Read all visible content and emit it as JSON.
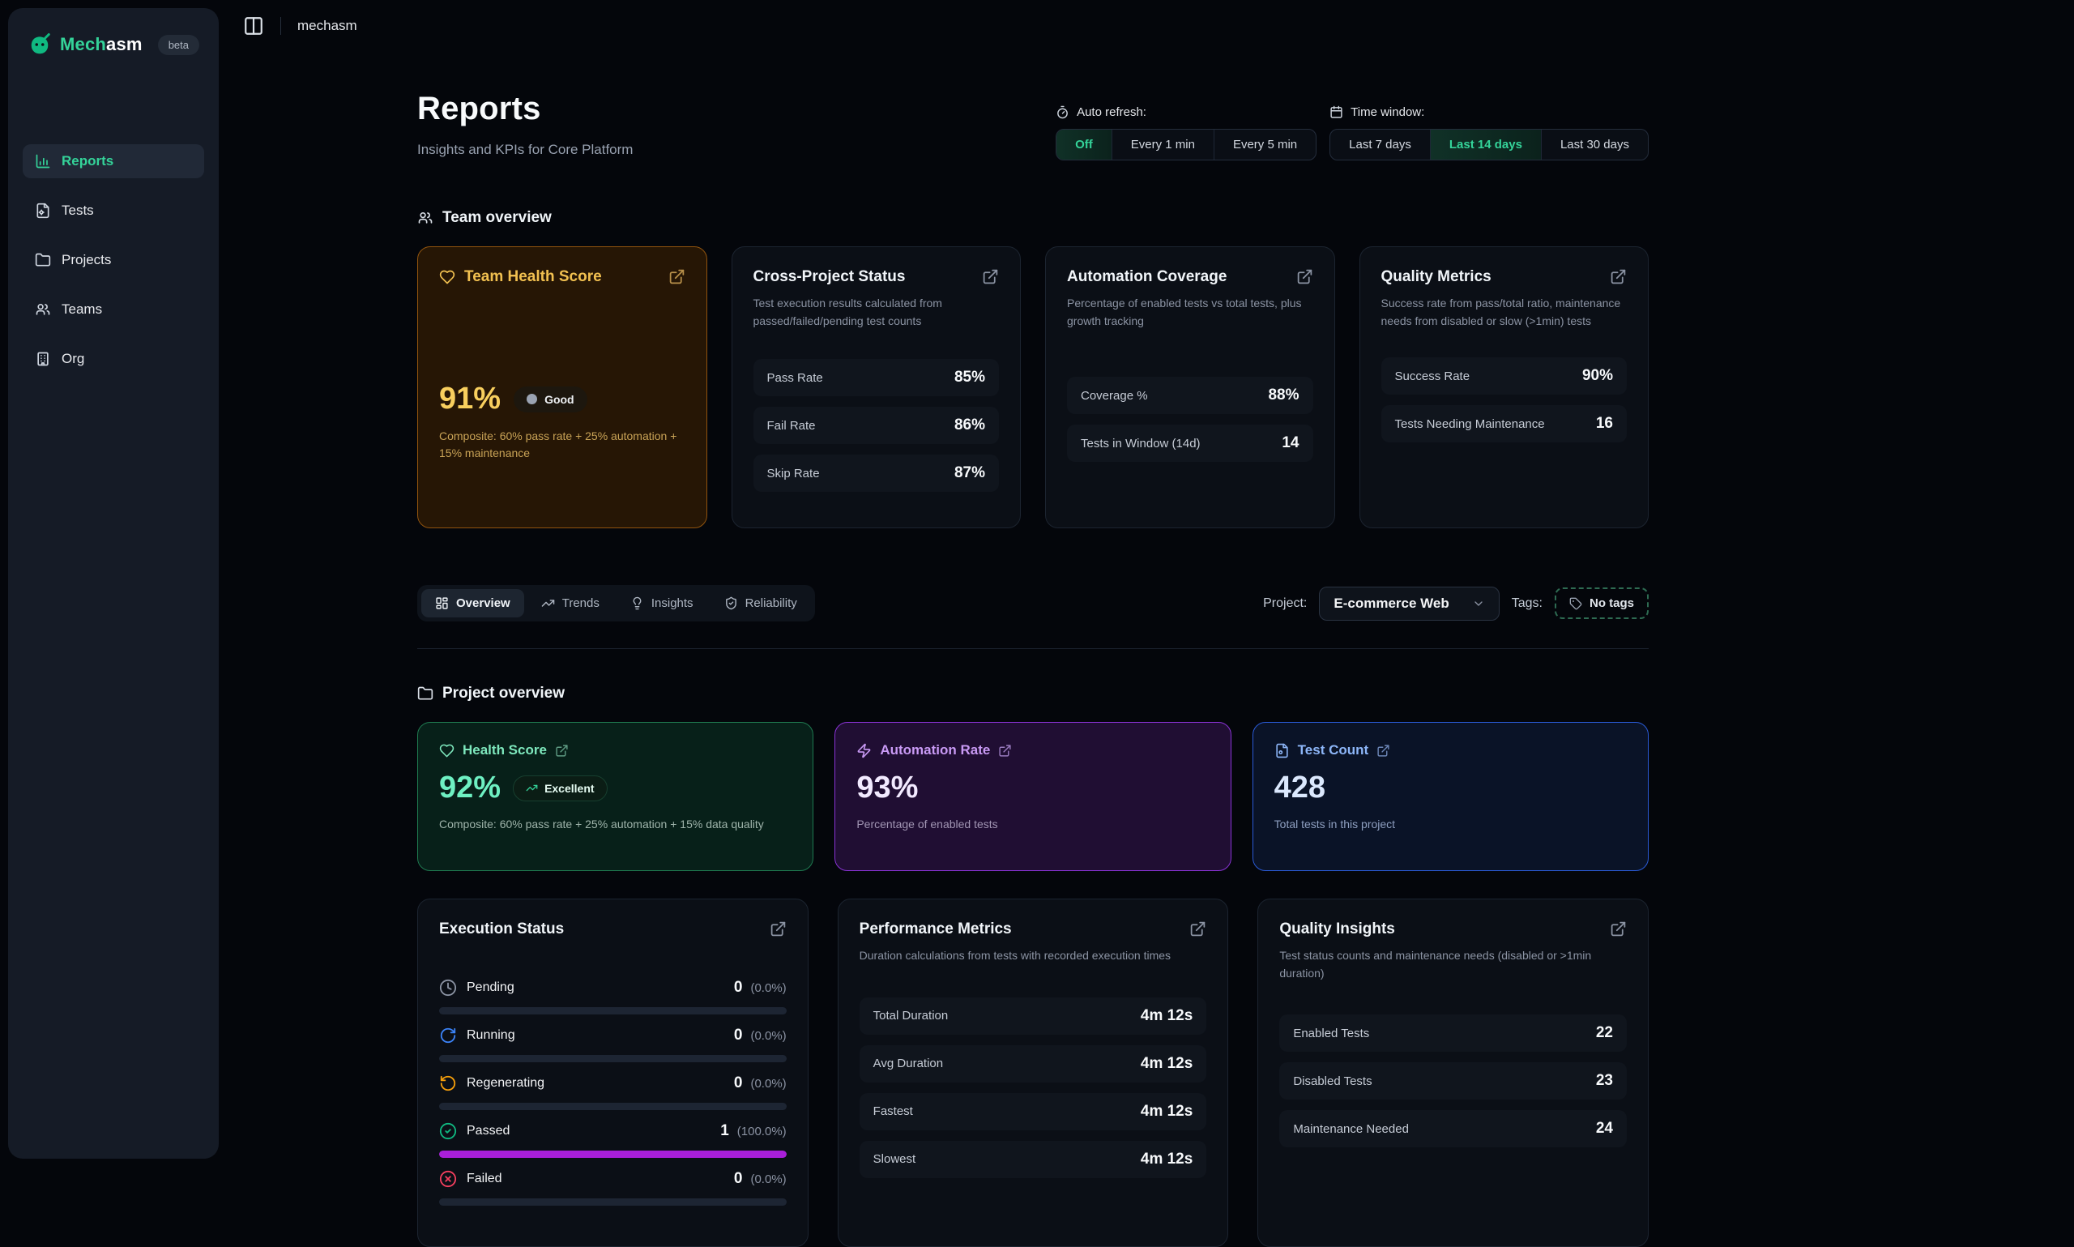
{
  "brand": {
    "name_primary": "Mech",
    "name_secondary": "asm",
    "beta": "beta"
  },
  "topbar": {
    "title": "mechasm"
  },
  "sidebar": {
    "items": [
      {
        "label": "Reports",
        "active": true
      },
      {
        "label": "Tests",
        "active": false
      },
      {
        "label": "Projects",
        "active": false
      },
      {
        "label": "Teams",
        "active": false
      },
      {
        "label": "Org",
        "active": false
      }
    ]
  },
  "header": {
    "title": "Reports",
    "subtitle": "Insights and KPIs for Core Platform",
    "auto_refresh": {
      "label": "Auto refresh:",
      "options": [
        "Off",
        "Every 1 min",
        "Every 5 min"
      ],
      "selected": "Off"
    },
    "time_window": {
      "label": "Time window:",
      "options": [
        "Last 7 days",
        "Last 14 days",
        "Last 30 days"
      ],
      "selected": "Last 14 days"
    }
  },
  "team_overview": {
    "section_title": "Team overview",
    "health": {
      "title": "Team Health Score",
      "value": "91%",
      "badge": "Good",
      "composite": "Composite: 60% pass rate + 25% automation + 15% maintenance"
    },
    "cards": [
      {
        "title": "Cross-Project Status",
        "description": "Test execution results calculated from passed/failed/pending test counts",
        "rows": [
          {
            "label": "Pass Rate",
            "value": "85%"
          },
          {
            "label": "Fail Rate",
            "value": "86%"
          },
          {
            "label": "Skip Rate",
            "value": "87%"
          }
        ]
      },
      {
        "title": "Automation Coverage",
        "description": "Percentage of enabled tests vs total tests, plus growth tracking",
        "rows": [
          {
            "label": "Coverage %",
            "value": "88%"
          },
          {
            "label": "Tests in Window (14d)",
            "value": "14"
          }
        ]
      },
      {
        "title": "Quality Metrics",
        "description": "Success rate from pass/total ratio, maintenance needs from disabled or slow (>1min) tests",
        "rows": [
          {
            "label": "Success Rate",
            "value": "90%"
          },
          {
            "label": "Tests Needing Maintenance",
            "value": "16"
          }
        ]
      }
    ]
  },
  "filter_bar": {
    "tabs": [
      {
        "label": "Overview",
        "active": true
      },
      {
        "label": "Trends",
        "active": false
      },
      {
        "label": "Insights",
        "active": false
      },
      {
        "label": "Reliability",
        "active": false
      }
    ],
    "project_label": "Project:",
    "project_value": "E-commerce Web",
    "tags_label": "Tags:",
    "tags_value": "No tags"
  },
  "project_overview": {
    "section_title": "Project overview",
    "stat_cards": [
      {
        "title": "Health Score",
        "value": "92%",
        "badge": "Excellent",
        "description": "Composite: 60% pass rate + 25% automation + 15% data quality",
        "accent": "#34d399"
      },
      {
        "title": "Automation Rate",
        "value": "93%",
        "description": "Percentage of enabled tests",
        "accent": "#a855f7"
      },
      {
        "title": "Test Count",
        "value": "428",
        "description": "Total tests in this project",
        "accent": "#3b82f6"
      }
    ],
    "execution_status": {
      "title": "Execution Status",
      "rows": [
        {
          "label": "Pending",
          "count": "0",
          "percent": "(0.0%)",
          "bar": 0,
          "status_color": "#8b93a3"
        },
        {
          "label": "Running",
          "count": "0",
          "percent": "(0.0%)",
          "bar": 0,
          "status_color": "#3b82f6"
        },
        {
          "label": "Regenerating",
          "count": "0",
          "percent": "(0.0%)",
          "bar": 0,
          "status_color": "#f59e0b"
        },
        {
          "label": "Passed",
          "count": "1",
          "percent": "(100.0%)",
          "bar": 100,
          "status_color": "#10b981"
        },
        {
          "label": "Failed",
          "count": "0",
          "percent": "(0.0%)",
          "bar": 0,
          "status_color": "#f43f5e"
        }
      ],
      "bar_fill_color": "#a91fd9"
    },
    "performance": {
      "title": "Performance Metrics",
      "description": "Duration calculations from tests with recorded execution times",
      "rows": [
        {
          "label": "Total Duration",
          "value": "4m 12s"
        },
        {
          "label": "Avg Duration",
          "value": "4m 12s"
        },
        {
          "label": "Fastest",
          "value": "4m 12s"
        },
        {
          "label": "Slowest",
          "value": "4m 12s"
        }
      ]
    },
    "quality": {
      "title": "Quality Insights",
      "description": "Test status counts and maintenance needs (disabled or >1min duration)",
      "rows": [
        {
          "label": "Enabled Tests",
          "value": "22"
        },
        {
          "label": "Disabled Tests",
          "value": "23"
        },
        {
          "label": "Maintenance Needed",
          "value": "24"
        }
      ]
    }
  },
  "colors": {
    "accent_green": "#34d399",
    "amber_card_border": "#92540e",
    "amber_text": "#f8cf5e",
    "purple_card_border": "#8a33d6",
    "blue_card_border": "#2a5bd7",
    "green_card_border": "#1f7a50",
    "progress_purple": "#a91fd9"
  }
}
